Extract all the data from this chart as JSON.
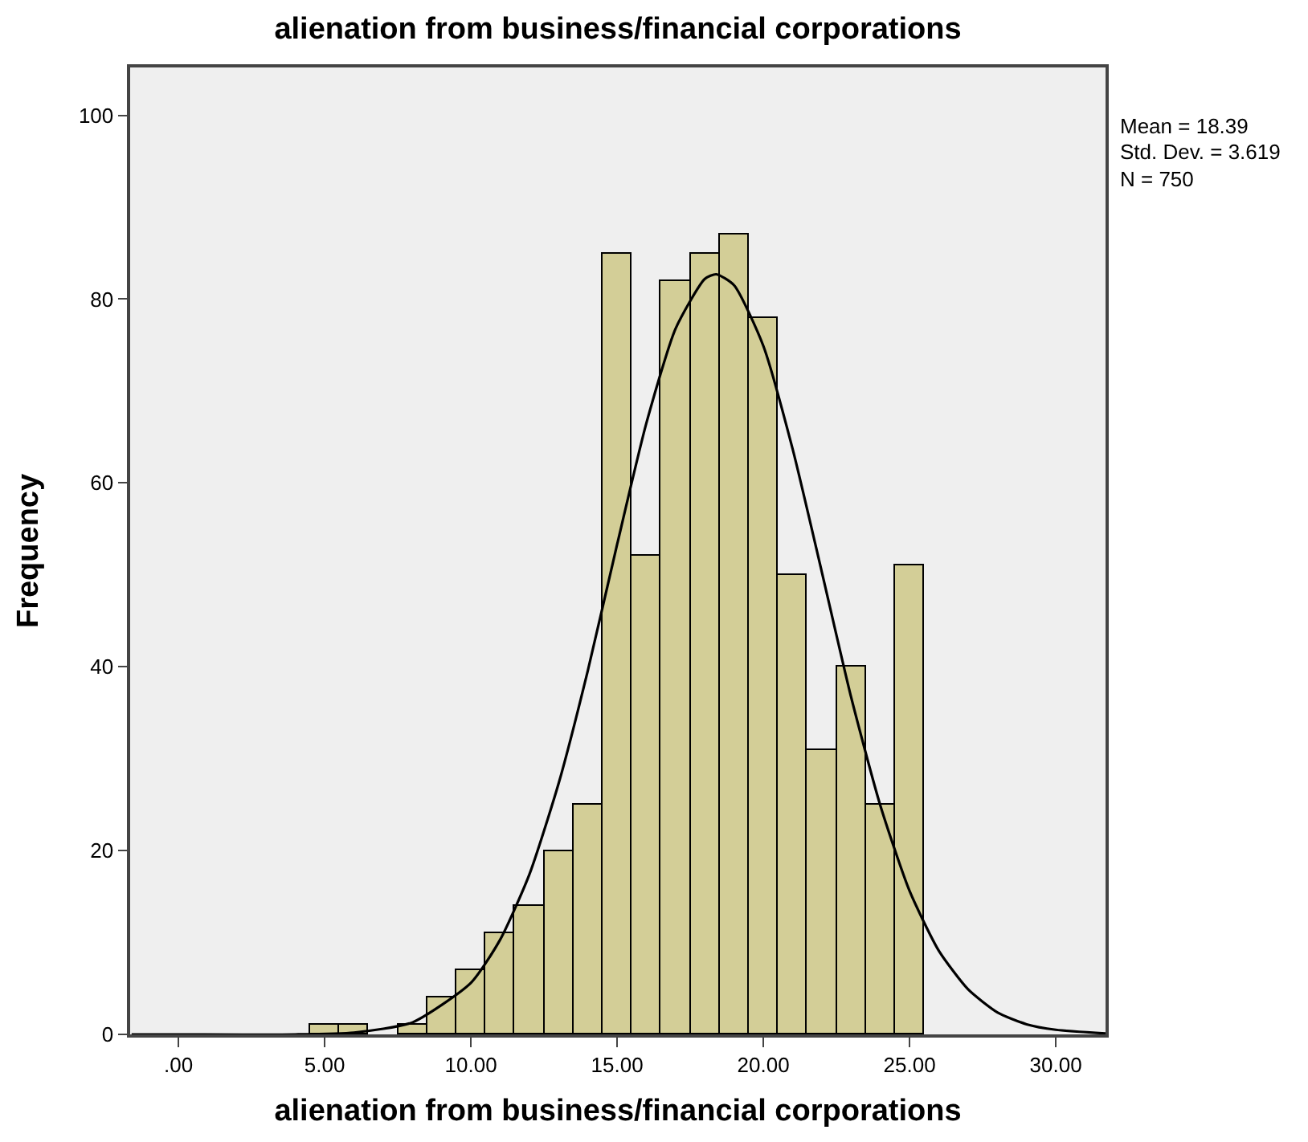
{
  "chart_data": {
    "type": "histogram",
    "title": "alienation from business/financial corporations",
    "xlabel": "alienation from business/financial corporations",
    "ylabel": "Frequency",
    "bins": [
      4.5,
      5.5,
      6.5,
      7.5,
      8.5,
      9.5,
      10.5,
      11.5,
      12.5,
      13.5,
      14.5,
      15.5,
      16.5,
      17.5,
      18.5,
      19.5,
      20.5,
      21.5,
      22.5,
      23.5,
      24.5,
      25.5
    ],
    "values": [
      1,
      1,
      0,
      1,
      4,
      7,
      11,
      14,
      20,
      25,
      85,
      52,
      82,
      85,
      87,
      78,
      50,
      31,
      40,
      25,
      51
    ],
    "color": "#d3ce97",
    "series": [
      {
        "type": "line",
        "color": "#000000",
        "x": [
          -1.6,
          4,
          6,
          8,
          10,
          11,
          12,
          13,
          14,
          15,
          16,
          17,
          18,
          18.39,
          19,
          20,
          21,
          22,
          23,
          24,
          25,
          26,
          27,
          28,
          29,
          30,
          31.7
        ],
        "values": [
          0,
          0,
          0.2,
          1.3,
          5.6,
          10.3,
          17.4,
          27.3,
          39.6,
          53.3,
          66.5,
          76.8,
          82.2,
          82.7,
          81.5,
          74.9,
          63.7,
          50.3,
          36.7,
          24.9,
          15.6,
          9.1,
          4.9,
          2.4,
          1.1,
          0.5,
          0.1
        ]
      }
    ],
    "xlim": [
      -1.65,
      31.7
    ],
    "xticks": [
      {
        "value": 0,
        "label": ".00"
      },
      {
        "value": 5,
        "label": "5.00"
      },
      {
        "value": 10,
        "label": "10.00"
      },
      {
        "value": 15,
        "label": "15.00"
      },
      {
        "value": 20,
        "label": "20.00"
      },
      {
        "value": 25,
        "label": "25.00"
      },
      {
        "value": 30,
        "label": "30.00"
      }
    ],
    "ylim": [
      0,
      105.2
    ],
    "yticks": [
      0,
      20,
      40,
      60,
      80,
      100
    ],
    "annotations": [
      "Mean = 18.39",
      "Std. Dev. = 3.619",
      "N = 750"
    ],
    "grid": false
  }
}
